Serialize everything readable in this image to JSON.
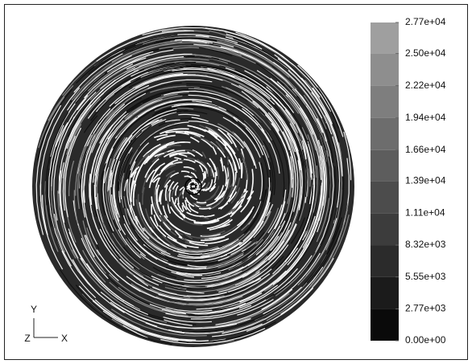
{
  "chart_data": {
    "type": "pathline",
    "colorbar_lim": [
      0,
      27700
    ],
    "colorbar_ticks": [
      {
        "value": 27700,
        "label": "2.77e+04"
      },
      {
        "value": 25000,
        "label": "2.50e+04"
      },
      {
        "value": 22200,
        "label": "2.22e+04"
      },
      {
        "value": 19400,
        "label": "1.94e+04"
      },
      {
        "value": 16600,
        "label": "1.66e+04"
      },
      {
        "value": 13900,
        "label": "1.39e+04"
      },
      {
        "value": 11100,
        "label": "1.11e+04"
      },
      {
        "value": 8320,
        "label": "8.32e+03"
      },
      {
        "value": 5550,
        "label": "5.55e+03"
      },
      {
        "value": 2770,
        "label": "2.77e+03"
      },
      {
        "value": 0,
        "label": "0.00e+00"
      }
    ],
    "axis_triad": {
      "y": "Y",
      "z": "Z",
      "x": "X"
    }
  }
}
